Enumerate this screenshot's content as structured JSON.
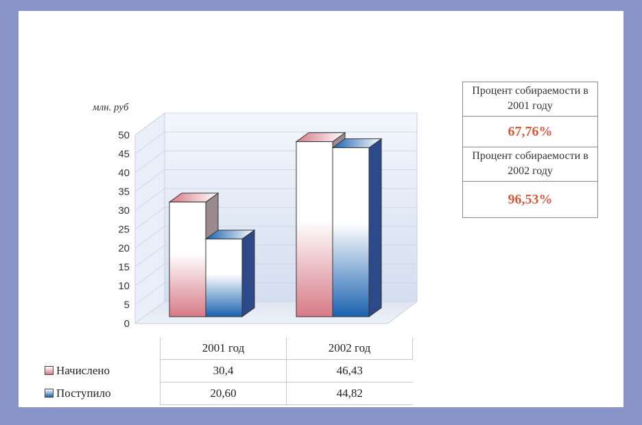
{
  "chart_data": {
    "type": "bar",
    "unit_label": "млн. руб",
    "categories": [
      "2001 год",
      "2002 год"
    ],
    "yticks": [
      "0",
      "5",
      "10",
      "15",
      "20",
      "25",
      "30",
      "35",
      "40",
      "45",
      "50"
    ],
    "ylim": [
      0,
      50
    ],
    "series": [
      {
        "name": "Начислено",
        "values": [
          30.4,
          46.43
        ],
        "display": [
          "30,4",
          "46,43"
        ],
        "color_top": "#ffffff",
        "color_bottom": "#d77a86",
        "side_color": "#9a8a90"
      },
      {
        "name": "Поступило",
        "values": [
          20.6,
          44.82
        ],
        "display": [
          "20,60",
          "44,82"
        ],
        "color_top": "#ffffff",
        "color_bottom": "#1a62b0",
        "side_color": "#2c4a8a"
      }
    ],
    "grid": true,
    "legend": "table-bottom"
  },
  "stats": [
    {
      "label": "Процент собираемости в 2001 году",
      "value": "67,76%"
    },
    {
      "label": "Процент собираемости в 2002 году",
      "value": "96,53%"
    }
  ],
  "colors": {
    "frame": "#8a94c8",
    "accent": "#e0583a"
  }
}
